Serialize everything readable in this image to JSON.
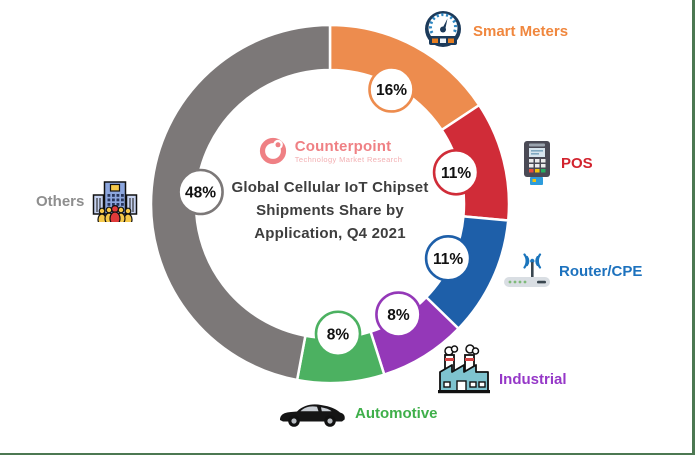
{
  "logo": {
    "name": "Counterpoint",
    "tagline": "Technology Market Research",
    "color": "#EF8084"
  },
  "chart_data": {
    "type": "pie",
    "subtype": "donut",
    "title": "Global Cellular IoT Chipset Shipments Share by Application, Q4 2021",
    "title_lines": [
      "Global Cellular IoT Chipset",
      "Shipments Share by",
      "Application, Q4 2021"
    ],
    "value_suffix": "%",
    "start_angle_deg": 0,
    "direction": "clockwise",
    "legend_position": "around",
    "segments": [
      {
        "label": "Smart Meters",
        "value": 16,
        "color": "#ED8C4E",
        "label_color": "#F0873E",
        "icon": "gauge-icon"
      },
      {
        "label": "POS",
        "value": 11,
        "color": "#D02C38",
        "label_color": "#D2232E",
        "icon": "pos-terminal-icon"
      },
      {
        "label": "Router/CPE",
        "value": 11,
        "color": "#1E5FA9",
        "label_color": "#1D72BE",
        "icon": "router-icon"
      },
      {
        "label": "Industrial",
        "value": 8,
        "color": "#9438B8",
        "label_color": "#9638C8",
        "icon": "factory-icon"
      },
      {
        "label": "Automotive",
        "value": 8,
        "color": "#4CB161",
        "label_color": "#3FAF4A",
        "icon": "car-icon"
      },
      {
        "label": "Others",
        "value": 48,
        "color": "#7C7878",
        "label_color": "#8E8E8E",
        "icon": "building-people-icon"
      }
    ]
  }
}
